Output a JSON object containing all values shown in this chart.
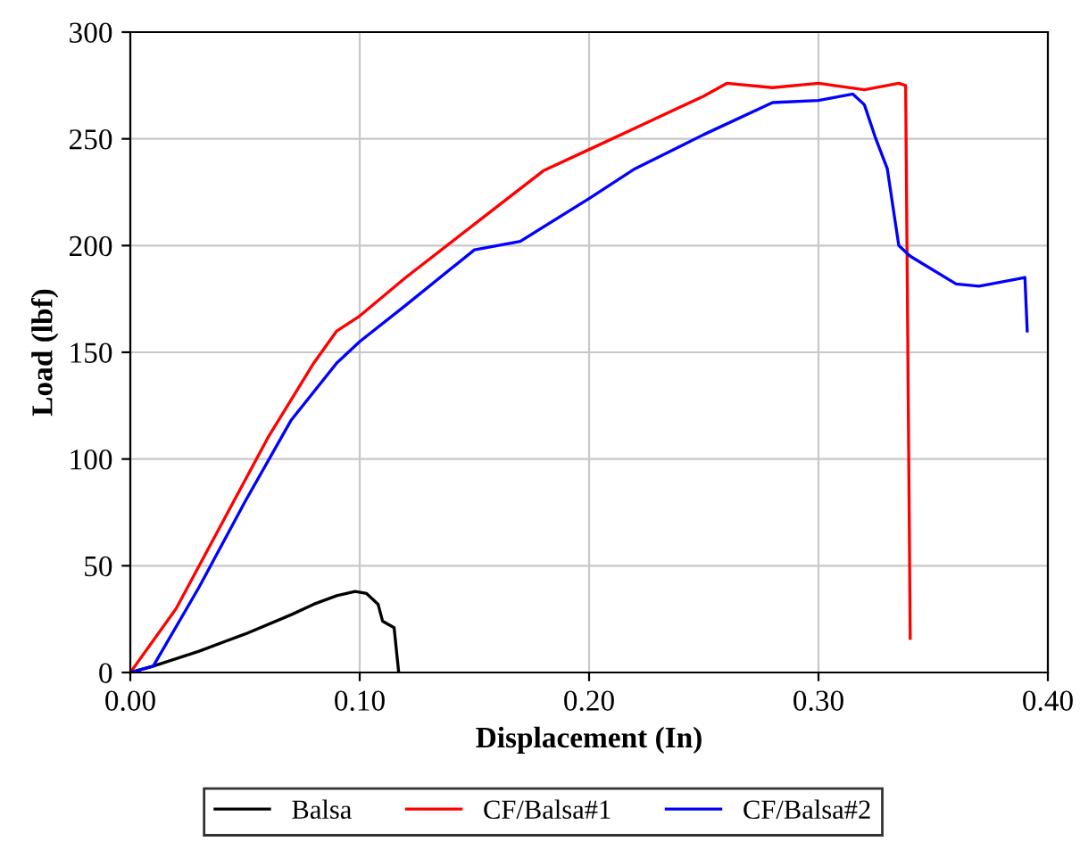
{
  "chart_data": {
    "type": "line",
    "xlabel": "Displacement (In)",
    "ylabel": "Load (lbf)",
    "xlim": [
      0,
      0.4
    ],
    "ylim": [
      0,
      300
    ],
    "xticks": [
      {
        "value": 0,
        "label": "0.00"
      },
      {
        "value": 0.1,
        "label": "0.10"
      },
      {
        "value": 0.2,
        "label": "0.20"
      },
      {
        "value": 0.3,
        "label": "0.30"
      },
      {
        "value": 0.4,
        "label": "0.40"
      }
    ],
    "yticks": [
      0,
      50,
      100,
      150,
      200,
      250,
      300
    ],
    "grid": true,
    "legend": "bottom",
    "marker": "none",
    "line_style": "solid",
    "series": [
      {
        "name": "Balsa",
        "color": "#000000",
        "x": [
          0,
          0.01,
          0.03,
          0.05,
          0.07,
          0.08,
          0.09,
          0.098,
          0.103,
          0.108,
          0.11,
          0.115,
          0.117
        ],
        "values": [
          0,
          3,
          10,
          18,
          27,
          32,
          36,
          38,
          37,
          32,
          24,
          21,
          0
        ]
      },
      {
        "name": "CF/Balsa#1",
        "color": "#ff0000",
        "x": [
          0,
          0.02,
          0.04,
          0.06,
          0.08,
          0.09,
          0.1,
          0.12,
          0.15,
          0.18,
          0.2,
          0.22,
          0.25,
          0.26,
          0.28,
          0.3,
          0.32,
          0.335,
          0.338,
          0.34
        ],
        "values": [
          0,
          30,
          70,
          110,
          145,
          160,
          167,
          185,
          210,
          235,
          245,
          255,
          270,
          276,
          274,
          276,
          273,
          276,
          275,
          16
        ]
      },
      {
        "name": "CF/Balsa#2",
        "color": "#0000ff",
        "x": [
          0,
          0.01,
          0.03,
          0.05,
          0.07,
          0.09,
          0.1,
          0.12,
          0.15,
          0.16,
          0.17,
          0.2,
          0.22,
          0.25,
          0.28,
          0.3,
          0.315,
          0.32,
          0.325,
          0.33,
          0.335,
          0.34,
          0.36,
          0.37,
          0.385,
          0.39,
          0.391
        ],
        "values": [
          0,
          3,
          40,
          80,
          118,
          145,
          155,
          172,
          198,
          200,
          202,
          222,
          236,
          252,
          267,
          268,
          271,
          266,
          250,
          236,
          200,
          195,
          182,
          181,
          184,
          185,
          160
        ]
      }
    ]
  }
}
